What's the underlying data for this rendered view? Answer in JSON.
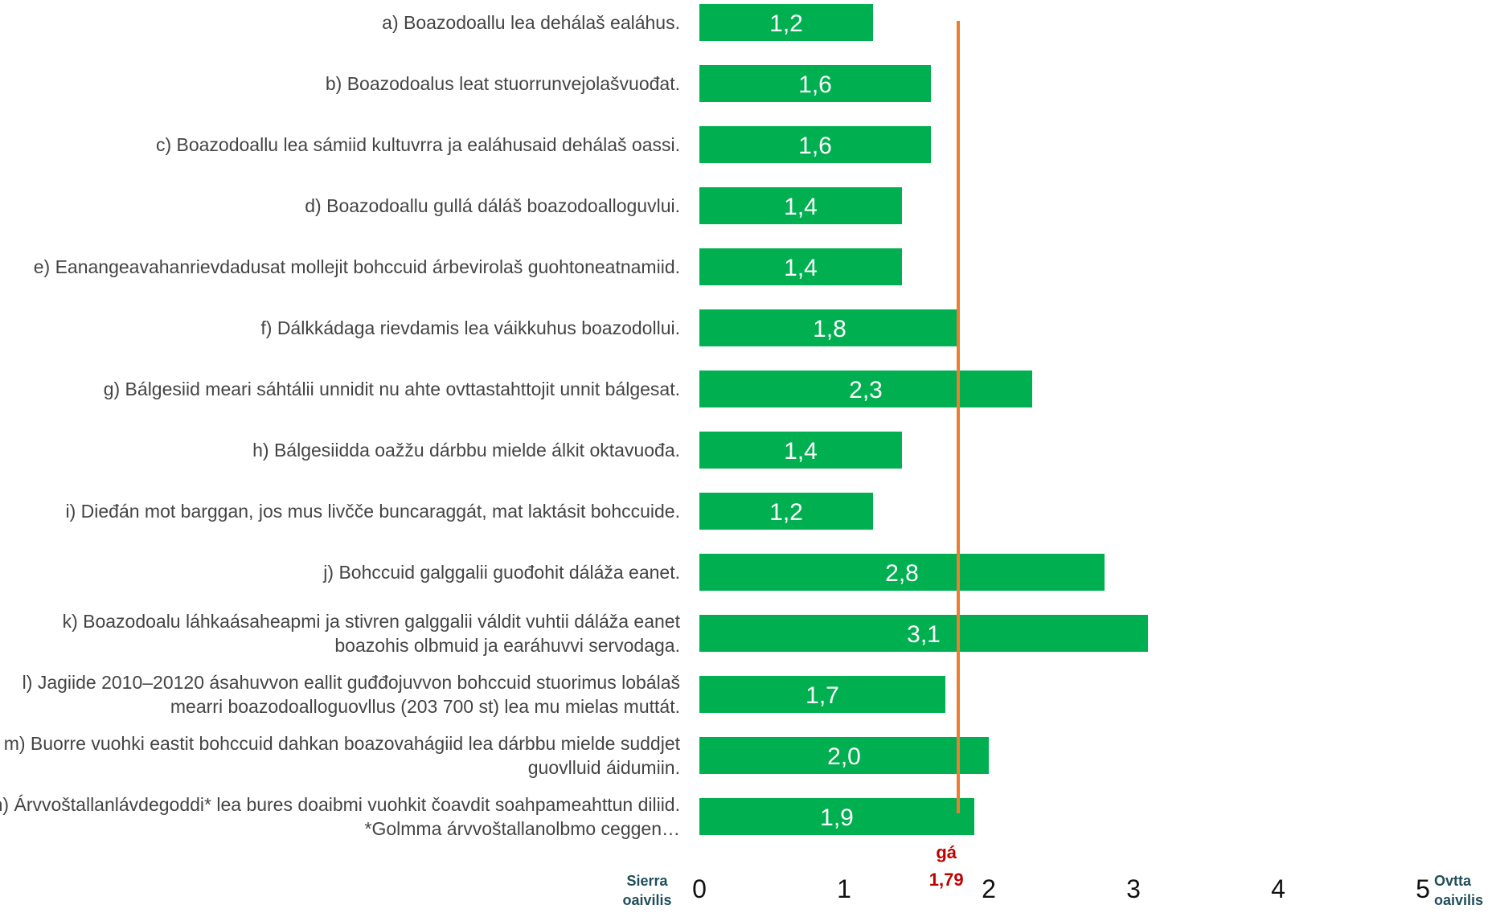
{
  "chart_data": {
    "type": "bar",
    "orientation": "horizontal",
    "categories": [
      "a) Boazodoallu lea dehálaš ealáhus.",
      "b) Boazodoalus leat stuorrunvejolašvuođat.",
      "c) Boazodoallu lea sámiid kultuvrra ja ealáhusaid dehálaš oassi.",
      "d) Boazodoallu gullá dáláš boazodoalloguvlui.",
      "e) Eanangeavahanrievdadusat mollejit bohccuid árbevirolaš guohtoneatnamiid.",
      "f) Dálkkádaga rievdamis lea váikkuhus boazodollui.",
      "g) Bálgesiid meari sáhtálii unnidit nu ahte ovttastahttojit unnit bálgesat.",
      "h) Bálgesiidda oažžu dárbbu mielde álkit oktavuođa.",
      "i) Dieđán mot barggan, jos mus livčče buncaraggát, mat laktásit bohccuide.",
      "j) Bohccuid galggalii guođohit dáláža eanet.",
      "k) Boazodoalu láhkaásaheapmi ja stivren galggalii váldit vuhtii dáláža eanet boazohis olbmuid ja earáhuvvi servodaga.",
      "l) Jagiide 2010–20120 ásahuvvon eallit guđđojuvvon bohccuid stuorimus lobálaš mearri boazodoalloguovllus (203 700 st) lea mu mielas muttát.",
      "m) Buorre vuohki eastit bohccuid dahkan boazovahágiid lea dárbbu mielde suddjet guovlluid áidumiin.",
      "n) Árvvoštallanlávdegoddi* lea bures doaibmi vuohkit čoavdit soahpameahttun diliid. *Golmma árvvoštallanolbmo ceggen…"
    ],
    "values": [
      1.2,
      1.6,
      1.6,
      1.4,
      1.4,
      1.8,
      2.3,
      1.4,
      1.2,
      2.8,
      3.1,
      1.7,
      2.0,
      1.9
    ],
    "value_labels": [
      "1,2",
      "1,6",
      "1,6",
      "1,4",
      "1,4",
      "1,8",
      "2,3",
      "1,4",
      "1,2",
      "2,8",
      "3,1",
      "1,7",
      "2,0",
      "1,9"
    ],
    "xlim": [
      0,
      5
    ],
    "x_ticks": [
      "0",
      "1",
      "2",
      "3",
      "4",
      "5"
    ],
    "axis_end_labels": {
      "left": [
        "Sierra",
        "oaivilis"
      ],
      "right": [
        "Ovtta",
        "oaivilis"
      ]
    },
    "average": {
      "value": 1.79,
      "label_line1": "gá",
      "label_line2": "1,79"
    },
    "grid": false,
    "colors": {
      "bar": "#00b050",
      "average_line": "#ed7d31",
      "average_label": "#c00000",
      "end_label": "#1f4e5a"
    }
  }
}
